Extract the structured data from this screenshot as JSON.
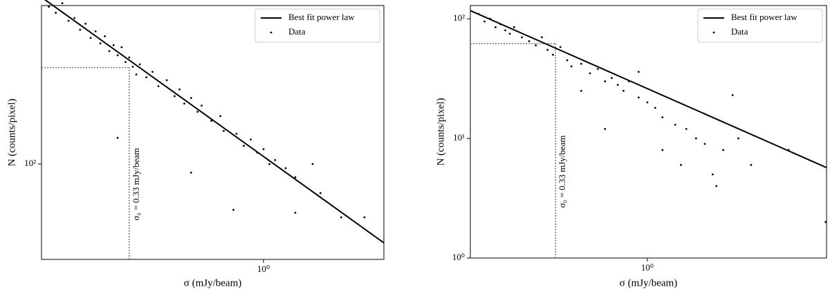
{
  "chart_data": [
    {
      "type": "scatter",
      "xscale": "log",
      "yscale": "log",
      "xlabel": "σ (mJy/beam)",
      "ylabel": "N (counts/pixel)",
      "xlim": [
        0.16,
        2.7
      ],
      "ylim": [
        31,
        700
      ],
      "xticks": [
        {
          "value": 1,
          "label": "10⁰"
        }
      ],
      "yticks": [
        {
          "value": 100,
          "label": "10²"
        }
      ],
      "legend": "upper right",
      "annotation": {
        "text": "σ₀ = 0.33 mJy/beam",
        "x": 0.33,
        "y": 327
      },
      "series": [
        {
          "name": "Best fit power law",
          "style": "line",
          "color": "#000000",
          "x": [
            0.16,
            2.7
          ],
          "values": [
            775,
            38
          ]
        },
        {
          "name": "Data",
          "style": "points",
          "color": "#000000",
          "x": [
            0.17,
            0.18,
            0.19,
            0.2,
            0.21,
            0.22,
            0.23,
            0.24,
            0.25,
            0.26,
            0.27,
            0.28,
            0.29,
            0.3,
            0.31,
            0.32,
            0.33,
            0.34,
            0.35,
            0.36,
            0.38,
            0.4,
            0.42,
            0.45,
            0.48,
            0.5,
            0.52,
            0.55,
            0.58,
            0.6,
            0.65,
            0.7,
            0.72,
            0.8,
            0.85,
            0.9,
            0.95,
            1.0,
            1.05,
            1.1,
            1.2,
            1.3,
            1.5,
            1.6,
            0.78,
            1.3,
            1.9,
            2.3,
            0.55,
            0.3
          ],
          "values": [
            690,
            640,
            720,
            580,
            600,
            520,
            560,
            470,
            510,
            440,
            480,
            400,
            430,
            380,
            420,
            350,
            370,
            330,
            300,
            340,
            290,
            310,
            260,
            280,
            230,
            250,
            210,
            225,
            190,
            205,
            170,
            180,
            150,
            145,
            125,
            135,
            115,
            120,
            100,
            105,
            95,
            85,
            100,
            70,
            57,
            55,
            52,
            52,
            90,
            138
          ]
        }
      ]
    },
    {
      "type": "scatter",
      "xscale": "log",
      "yscale": "log",
      "xlabel": "σ (mJy/beam)",
      "ylabel": "N (counts/pixel)",
      "xlim": [
        0.118,
        8.7
      ],
      "ylim": [
        1,
        129
      ],
      "xticks": [
        {
          "value": 1,
          "label": "10⁰"
        }
      ],
      "yticks": [
        {
          "value": 1,
          "label": "10⁰"
        },
        {
          "value": 10,
          "label": "10¹"
        },
        {
          "value": 100,
          "label": "10²"
        }
      ],
      "legend": "upper right",
      "annotation": {
        "text": "σ₀ = 0.33 mJy/beam",
        "x": 0.33,
        "y": 62
      },
      "series": [
        {
          "name": "Best fit power law",
          "style": "line",
          "color": "#000000",
          "x": [
            0.118,
            8.7
          ],
          "values": [
            117,
            5.7
          ]
        },
        {
          "name": "Data",
          "style": "points",
          "color": "#000000",
          "x": [
            0.13,
            0.14,
            0.15,
            0.16,
            0.17,
            0.18,
            0.19,
            0.2,
            0.22,
            0.24,
            0.26,
            0.28,
            0.3,
            0.32,
            0.35,
            0.38,
            0.4,
            0.45,
            0.5,
            0.55,
            0.6,
            0.65,
            0.7,
            0.75,
            0.8,
            0.9,
            1.0,
            1.1,
            1.2,
            1.4,
            1.6,
            1.8,
            2.0,
            2.5,
            3.0,
            0.6,
            1.2,
            1.5,
            2.2,
            2.3,
            3.5,
            5.5,
            8.6,
            2.8,
            0.9,
            0.45
          ],
          "values": [
            110,
            95,
            100,
            85,
            90,
            80,
            75,
            85,
            70,
            65,
            60,
            70,
            55,
            50,
            58,
            45,
            40,
            42,
            35,
            38,
            30,
            32,
            28,
            25,
            30,
            22,
            20,
            18,
            15,
            13,
            12,
            10,
            9,
            8,
            10,
            12,
            8,
            6,
            5,
            4,
            6,
            8,
            2,
            23,
            36,
            25
          ]
        }
      ]
    }
  ]
}
